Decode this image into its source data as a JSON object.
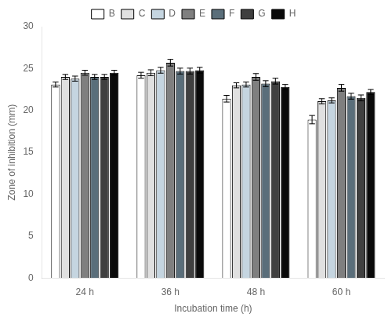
{
  "chart_data": {
    "type": "bar",
    "xlabel": "Incubation time (h)",
    "ylabel": "Zone of inhibition (mm)",
    "categories": [
      "24 h",
      "36 h",
      "48 h",
      "60 h"
    ],
    "series": [
      {
        "name": "B",
        "color": "#ffffff",
        "values": [
          23.1,
          24.2,
          21.4,
          18.9
        ],
        "errors": [
          0.3,
          0.35,
          0.4,
          0.5
        ]
      },
      {
        "name": "C",
        "color": "#e0e0e0",
        "values": [
          24.0,
          24.5,
          23.0,
          21.1
        ],
        "errors": [
          0.3,
          0.35,
          0.3,
          0.3
        ]
      },
      {
        "name": "D",
        "color": "#c5d5e0",
        "values": [
          23.8,
          24.8,
          23.1,
          21.2
        ],
        "errors": [
          0.3,
          0.35,
          0.3,
          0.3
        ]
      },
      {
        "name": "E",
        "color": "#7f7f7f",
        "values": [
          24.5,
          25.7,
          24.0,
          22.7
        ],
        "errors": [
          0.3,
          0.4,
          0.4,
          0.4
        ]
      },
      {
        "name": "F",
        "color": "#5a6e7a",
        "values": [
          24.0,
          24.7,
          23.2,
          21.7
        ],
        "errors": [
          0.3,
          0.35,
          0.35,
          0.35
        ]
      },
      {
        "name": "G",
        "color": "#404040",
        "values": [
          24.0,
          24.7,
          23.5,
          21.5
        ],
        "errors": [
          0.3,
          0.35,
          0.35,
          0.35
        ]
      },
      {
        "name": "H",
        "color": "#0a0a0a",
        "values": [
          24.5,
          24.8,
          22.8,
          22.2
        ],
        "errors": [
          0.3,
          0.35,
          0.3,
          0.3
        ]
      }
    ],
    "ylim": [
      0,
      30
    ],
    "yticks": [
      0,
      5,
      10,
      15,
      20,
      25,
      30
    ],
    "grid": false,
    "legend": "top"
  }
}
